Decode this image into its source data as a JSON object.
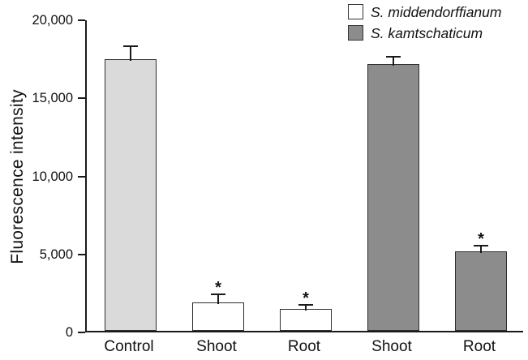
{
  "chart_data": {
    "type": "bar",
    "title": "",
    "xlabel": "",
    "ylabel": "Fluorescence intensity",
    "ylim": [
      0,
      20000
    ],
    "yticks": [
      0,
      5000,
      10000,
      15000,
      20000
    ],
    "ytick_labels": [
      "0",
      "5,000",
      "10,000",
      "15,000",
      "20,000"
    ],
    "grid": false,
    "legend_position": "top-right",
    "significance_marker": "*",
    "categories": [
      "Control",
      "Shoot",
      "Root",
      "Shoot",
      "Root"
    ],
    "bars": [
      {
        "category": "Control",
        "series": "Control",
        "value": 17400,
        "error": 800,
        "color": "#dadada",
        "significant": false
      },
      {
        "category": "Shoot",
        "series": "S. middendorffianum",
        "value": 1800,
        "error": 500,
        "color": "#ffffff",
        "significant": true
      },
      {
        "category": "Root",
        "series": "S. middendorffianum",
        "value": 1400,
        "error": 200,
        "color": "#ffffff",
        "significant": true
      },
      {
        "category": "Shoot",
        "series": "S. kamtschaticum",
        "value": 17100,
        "error": 400,
        "color": "#8c8c8c",
        "significant": false
      },
      {
        "category": "Root",
        "series": "S. kamtschaticum",
        "value": 5100,
        "error": 300,
        "color": "#8c8c8c",
        "significant": true
      }
    ],
    "legend": [
      {
        "label": "S. middendorffianum",
        "color": "#ffffff"
      },
      {
        "label": "S. kamtschaticum",
        "color": "#8c8c8c"
      }
    ]
  }
}
